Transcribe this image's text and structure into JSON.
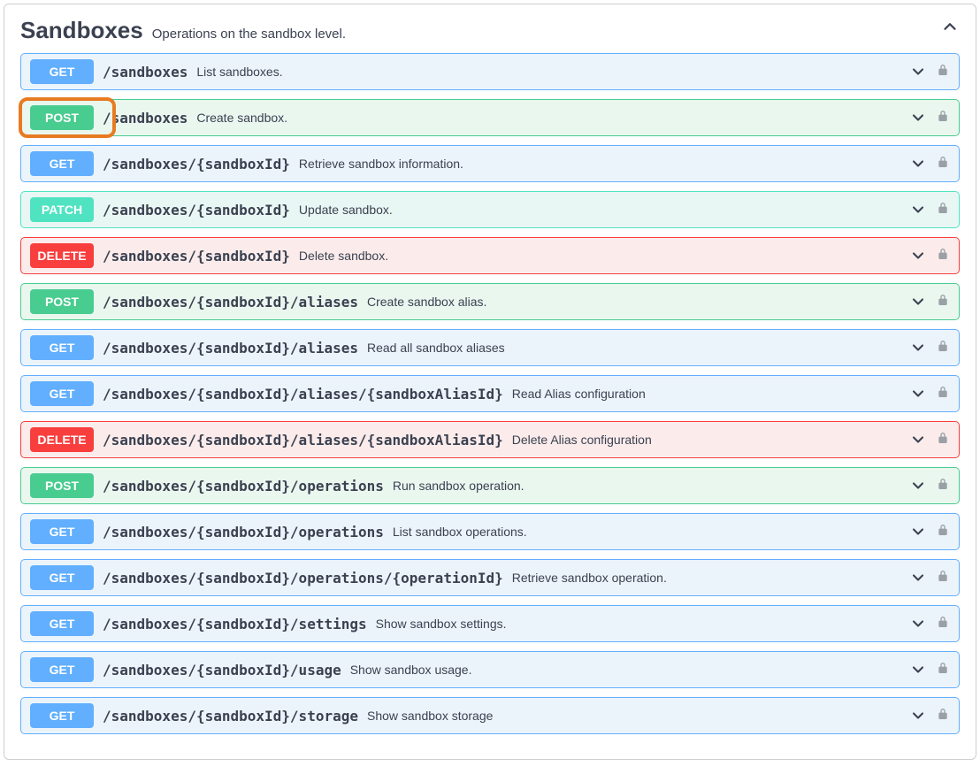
{
  "section": {
    "title": "Sandboxes",
    "description": "Operations on the sandbox level."
  },
  "colors": {
    "get_bg": "#ecf4fb",
    "get_border": "#61affe",
    "get_badge": "#61affe",
    "post_bg": "#eaf7ef",
    "post_border": "#49cc90",
    "post_badge": "#49cc90",
    "patch_bg": "#e9f7f4",
    "patch_border": "#50e3c2",
    "patch_badge": "#50e3c2",
    "delete_bg": "#fbeceb",
    "delete_border": "#f93e3e",
    "delete_badge": "#f93e3e",
    "highlight_outline": "#e87b22",
    "text": "#3b4151",
    "lock": "#9aa0a6"
  },
  "operations": [
    {
      "method": "GET",
      "path": "/sandboxes",
      "desc": "List sandboxes.",
      "highlighted": false
    },
    {
      "method": "POST",
      "path": "/sandboxes",
      "desc": "Create sandbox.",
      "highlighted": true
    },
    {
      "method": "GET",
      "path": "/sandboxes/{sandboxId}",
      "desc": "Retrieve sandbox information.",
      "highlighted": false
    },
    {
      "method": "PATCH",
      "path": "/sandboxes/{sandboxId}",
      "desc": "Update sandbox.",
      "highlighted": false
    },
    {
      "method": "DELETE",
      "path": "/sandboxes/{sandboxId}",
      "desc": "Delete sandbox.",
      "highlighted": false
    },
    {
      "method": "POST",
      "path": "/sandboxes/{sandboxId}/aliases",
      "desc": "Create sandbox alias.",
      "highlighted": false
    },
    {
      "method": "GET",
      "path": "/sandboxes/{sandboxId}/aliases",
      "desc": "Read all sandbox aliases",
      "highlighted": false
    },
    {
      "method": "GET",
      "path": "/sandboxes/{sandboxId}/aliases/{sandboxAliasId}",
      "desc": "Read Alias configuration",
      "highlighted": false
    },
    {
      "method": "DELETE",
      "path": "/sandboxes/{sandboxId}/aliases/{sandboxAliasId}",
      "desc": "Delete Alias configuration",
      "highlighted": false
    },
    {
      "method": "POST",
      "path": "/sandboxes/{sandboxId}/operations",
      "desc": "Run sandbox operation.",
      "highlighted": false
    },
    {
      "method": "GET",
      "path": "/sandboxes/{sandboxId}/operations",
      "desc": "List sandbox operations.",
      "highlighted": false
    },
    {
      "method": "GET",
      "path": "/sandboxes/{sandboxId}/operations/{operationId}",
      "desc": "Retrieve sandbox operation.",
      "highlighted": false
    },
    {
      "method": "GET",
      "path": "/sandboxes/{sandboxId}/settings",
      "desc": "Show sandbox settings.",
      "highlighted": false
    },
    {
      "method": "GET",
      "path": "/sandboxes/{sandboxId}/usage",
      "desc": "Show sandbox usage.",
      "highlighted": false
    },
    {
      "method": "GET",
      "path": "/sandboxes/{sandboxId}/storage",
      "desc": "Show sandbox storage",
      "highlighted": false
    }
  ]
}
